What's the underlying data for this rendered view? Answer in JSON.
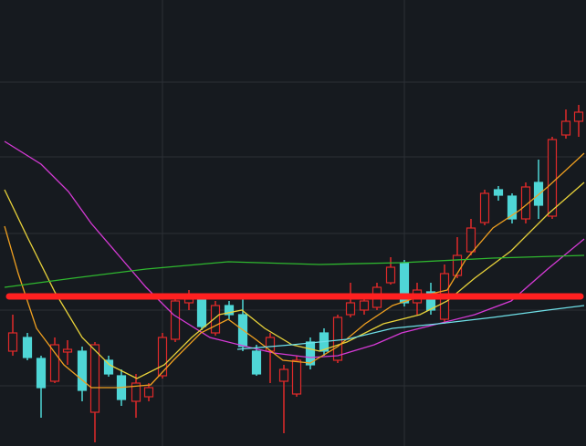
{
  "chart_data": {
    "type": "candlestick",
    "xlim": [
      0,
      642
    ],
    "ylim": [
      0,
      489
    ],
    "xticks": [
      178,
      443
    ],
    "yticks": [
      66,
      149,
      233,
      317,
      399
    ],
    "grid": true,
    "up_color": "#e02a2a",
    "down_color": "#4fd6d6",
    "candles": {
      "x": [
        14,
        30,
        45,
        60,
        74,
        90,
        104,
        119,
        133,
        149,
        163,
        178,
        192,
        207,
        221,
        236,
        251,
        266,
        281,
        296,
        311,
        325,
        340,
        355,
        370,
        384,
        399,
        413,
        428,
        443,
        457,
        472,
        487,
        501,
        516,
        531,
        546,
        561,
        576,
        590,
        605,
        620,
        634
      ],
      "open": [
        104,
        119,
        96,
        71,
        103,
        104,
        37,
        94,
        77,
        49,
        54,
        77,
        117,
        157,
        161,
        124,
        154,
        144,
        104,
        104,
        71,
        57,
        114,
        124,
        94,
        144,
        149,
        152,
        179,
        201,
        157,
        169,
        139,
        187,
        213,
        245,
        281,
        274,
        249,
        289,
        252,
        341,
        356
      ],
      "high": [
        144,
        124,
        99,
        119,
        116,
        109,
        114,
        99,
        84,
        79,
        69,
        124,
        164,
        171,
        164,
        159,
        159,
        161,
        111,
        124,
        89,
        99,
        119,
        129,
        144,
        179,
        164,
        179,
        207,
        204,
        179,
        179,
        199,
        229,
        249,
        281,
        285,
        277,
        289,
        314,
        339,
        369,
        374
      ],
      "low": [
        99,
        94,
        31,
        69,
        89,
        49,
        4,
        76,
        44,
        31,
        49,
        74,
        114,
        149,
        127,
        121,
        139,
        104,
        77,
        69,
        14,
        54,
        84,
        99,
        91,
        141,
        144,
        149,
        177,
        153,
        144,
        144,
        134,
        184,
        209,
        242,
        269,
        244,
        244,
        249,
        249,
        337,
        339
      ],
      "close": [
        124,
        97,
        64,
        111,
        106,
        61,
        111,
        79,
        51,
        69,
        64,
        119,
        159,
        161,
        131,
        154,
        144,
        109,
        79,
        119,
        84,
        94,
        89,
        104,
        141,
        157,
        159,
        174,
        196,
        157,
        171,
        149,
        189,
        209,
        239,
        277,
        275,
        249,
        284,
        264,
        336,
        356,
        366
      ]
    },
    "lines": [
      {
        "color": "#d63ad6",
        "x": [
          5,
          45,
          75,
          100,
          130,
          160,
          190,
          230,
          270,
          300,
          340,
          370,
          410,
          440,
          480,
          520,
          560,
          600,
          640
        ],
        "values": [
          334,
          309,
          279,
          244,
          209,
          174,
          144,
          119,
          109,
          102,
          97,
          99,
          111,
          124,
          134,
          144,
          159,
          194,
          227
        ]
      },
      {
        "color": "#e8d23a",
        "x": [
          5,
          30,
          60,
          90,
          120,
          150,
          180,
          210,
          240,
          265,
          290,
          320,
          350,
          380,
          420,
          460,
          490,
          520,
          560,
          600,
          640
        ],
        "values": [
          281,
          229,
          169,
          119,
          89,
          74,
          89,
          119,
          144,
          149,
          129,
          111,
          104,
          114,
          134,
          144,
          159,
          184,
          214,
          254,
          289
        ]
      },
      {
        "color": "#f0a020",
        "x": [
          5,
          20,
          40,
          70,
          100,
          130,
          165,
          190,
          220,
          250,
          280,
          310,
          340,
          370,
          400,
          430,
          460,
          490,
          510,
          540,
          570,
          600,
          640
        ],
        "values": [
          241,
          189,
          129,
          89,
          64,
          64,
          67,
          94,
          124,
          139,
          117,
          94,
          91,
          109,
          134,
          154,
          164,
          171,
          204,
          239,
          259,
          284,
          321
        ]
      },
      {
        "color": "#2fb82f",
        "x": [
          5,
          80,
          160,
          250,
          350,
          440,
          540,
          640
        ],
        "values": [
          174,
          184,
          194,
          202,
          199,
          201,
          206,
          209
        ]
      },
      {
        "color": "#6fe0e8",
        "x": [
          260,
          320,
          380,
          430,
          480,
          540,
          600,
          640
        ],
        "values": [
          106,
          111,
          117,
          129,
          134,
          141,
          149,
          154
        ]
      }
    ],
    "hline": {
      "value": 164,
      "color": "#ff2020"
    }
  }
}
